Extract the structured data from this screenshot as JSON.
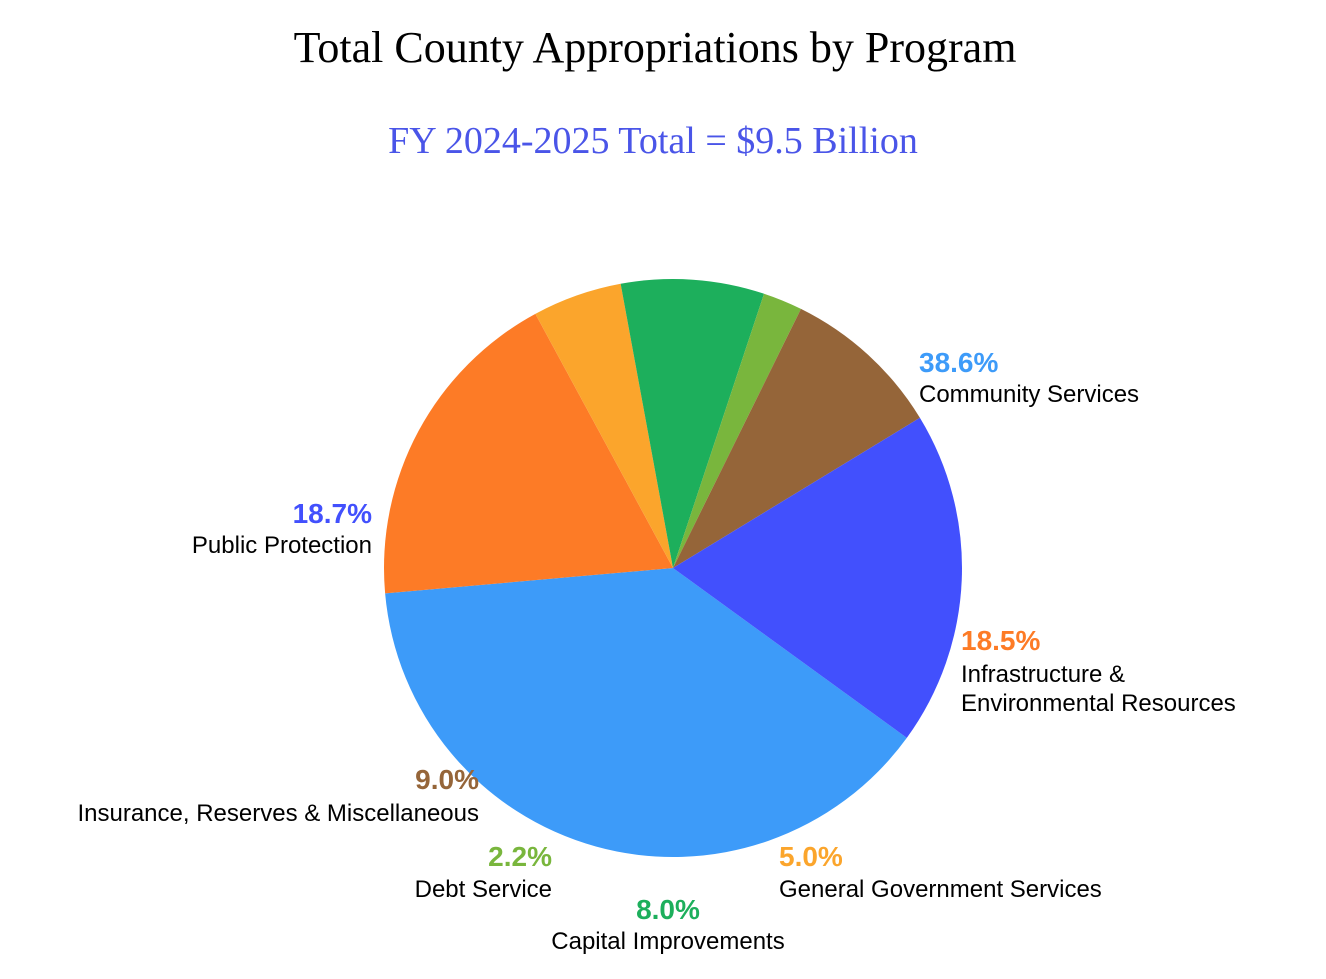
{
  "chart_data": {
    "type": "pie",
    "title": "Total County Appropriations by Program",
    "subtitle": "FY 2024-2025 Total = $9.5 Billion",
    "colors": {
      "subtitle": "#4a55e8"
    },
    "slices": [
      {
        "name": "Community Services",
        "label_lines": [
          "Community Services"
        ],
        "percent_label": "38.6%",
        "value": 38.6,
        "color": "#3d9bf9"
      },
      {
        "name": "Infrastructure & Environmental Resources",
        "label_lines": [
          "Infrastructure &",
          "Environmental Resources"
        ],
        "percent_label": "18.5%",
        "value": 18.5,
        "color": "#fd7b26"
      },
      {
        "name": "General Government Services",
        "label_lines": [
          "General Government Services"
        ],
        "percent_label": "5.0%",
        "value": 5.0,
        "color": "#fba52c"
      },
      {
        "name": "Capital Improvements",
        "label_lines": [
          "Capital Improvements"
        ],
        "percent_label": "8.0%",
        "value": 8.0,
        "color": "#1daf5c"
      },
      {
        "name": "Debt Service",
        "label_lines": [
          "Debt Service"
        ],
        "percent_label": "2.2%",
        "value": 2.2,
        "color": "#79b63d"
      },
      {
        "name": "Insurance, Reserves & Miscellaneous",
        "label_lines": [
          "Insurance, Reserves & Miscellaneous"
        ],
        "percent_label": "9.0%",
        "value": 9.0,
        "color": "#956539"
      },
      {
        "name": "Public Protection",
        "label_lines": [
          "Public Protection"
        ],
        "percent_label": "18.7%",
        "value": 18.7,
        "color": "#4250fd"
      }
    ]
  }
}
